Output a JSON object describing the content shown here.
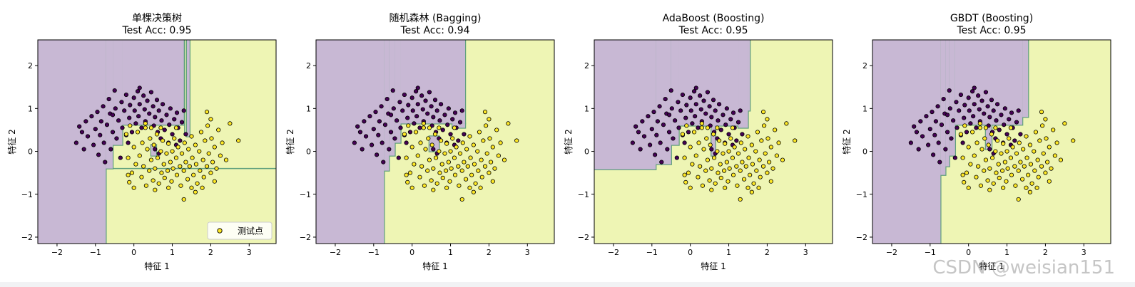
{
  "watermark": "CSDN @weisian151",
  "colors": {
    "region_class0": "#c8b8d4",
    "region_class1": "#eef5b4",
    "boundary": "#5f9f7c",
    "point_class0": "#440154",
    "point_class1": "#fde725",
    "point_edge": "#000000"
  },
  "chart_data": [
    {
      "type": "scatter",
      "title": "单棵决策树",
      "subtitle": "Test Acc: 0.95",
      "xlabel": "特征 1",
      "ylabel": "特征 2",
      "xlim": [
        -2.5,
        3.7
      ],
      "ylim": [
        -2.15,
        2.6
      ],
      "xticks": [
        -2,
        -1,
        0,
        1,
        2,
        3
      ],
      "yticks": [
        -2,
        -1,
        0,
        1,
        2
      ],
      "legend": {
        "label": "测试点",
        "position": "lower-right"
      },
      "decision_regions": {
        "background_class": 1,
        "class0_rects": [
          [
            -2.5,
            -0.73,
            -2.15,
            2.6
          ],
          [
            -0.73,
            -0.55,
            -0.4,
            2.6
          ],
          [
            -0.55,
            -0.3,
            0.15,
            2.6
          ],
          [
            -0.3,
            1.3,
            0.62,
            2.6
          ],
          [
            1.38,
            1.45,
            0.35,
            2.6
          ],
          [
            0.45,
            0.58,
            -0.1,
            0.15
          ]
        ]
      }
    },
    {
      "type": "scatter",
      "title": "随机森林 (Bagging)",
      "subtitle": "Test Acc: 0.94",
      "xlabel": "特征 1",
      "ylabel": "特征 2",
      "xlim": [
        -2.5,
        3.7
      ],
      "ylim": [
        -2.15,
        2.6
      ],
      "xticks": [
        -2,
        -1,
        0,
        1,
        2,
        3
      ],
      "yticks": [
        -2,
        -1,
        0,
        1,
        2
      ],
      "decision_regions": {
        "background_class": 1,
        "class0_rects": [
          [
            -2.5,
            -0.73,
            -2.15,
            2.6
          ],
          [
            -0.73,
            -0.6,
            -0.45,
            2.6
          ],
          [
            -0.6,
            -0.45,
            -0.1,
            2.6
          ],
          [
            -0.45,
            -0.3,
            0.2,
            2.6
          ],
          [
            -0.3,
            1.38,
            0.65,
            2.6
          ],
          [
            0.45,
            0.7,
            0.0,
            0.35
          ],
          [
            1.05,
            1.38,
            0.55,
            0.65
          ]
        ]
      }
    },
    {
      "type": "scatter",
      "title": "AdaBoost (Boosting)",
      "subtitle": "Test Acc: 0.95",
      "xlabel": "特征 1",
      "ylabel": "特征 2",
      "xlim": [
        -2.5,
        3.7
      ],
      "ylim": [
        -2.15,
        2.6
      ],
      "xticks": [
        -2,
        -1,
        0,
        1,
        2,
        3
      ],
      "yticks": [
        -2,
        -1,
        0,
        1,
        2
      ],
      "decision_regions": {
        "background_class": 1,
        "class0_rects": [
          [
            -2.5,
            -0.9,
            -0.42,
            2.6
          ],
          [
            -0.9,
            -0.5,
            -0.3,
            2.6
          ],
          [
            -0.5,
            -0.3,
            0.15,
            2.6
          ],
          [
            -0.3,
            1.25,
            0.6,
            2.6
          ],
          [
            1.25,
            1.5,
            0.55,
            2.6
          ],
          [
            1.5,
            1.55,
            0.95,
            2.6
          ],
          [
            0.55,
            0.65,
            -0.1,
            0.6
          ]
        ]
      }
    },
    {
      "type": "scatter",
      "title": "GBDT (Boosting)",
      "subtitle": "Test Acc: 0.95",
      "xlabel": "特征 1",
      "ylabel": "特征 2",
      "xlim": [
        -2.5,
        3.7
      ],
      "ylim": [
        -2.15,
        2.6
      ],
      "xticks": [
        -2,
        -1,
        0,
        1,
        2,
        3
      ],
      "yticks": [
        -2,
        -1,
        0,
        1,
        2
      ],
      "decision_regions": {
        "background_class": 1,
        "class0_rects": [
          [
            -2.5,
            -0.73,
            -2.15,
            2.6
          ],
          [
            -0.73,
            -0.6,
            -0.55,
            2.6
          ],
          [
            -0.6,
            -0.5,
            -0.35,
            2.6
          ],
          [
            -0.5,
            -0.35,
            -0.1,
            2.6
          ],
          [
            -0.35,
            1.4,
            0.62,
            2.6
          ],
          [
            0.45,
            0.6,
            0.05,
            0.62
          ],
          [
            1.4,
            1.55,
            0.8,
            2.6
          ]
        ]
      }
    }
  ],
  "points": {
    "class0": [
      [
        -1.42,
        0.58
      ],
      [
        -1.35,
        0.45
      ],
      [
        -1.5,
        0.2
      ],
      [
        -1.25,
        0.7
      ],
      [
        -1.2,
        0.35
      ],
      [
        -1.1,
        0.82
      ],
      [
        -1.05,
        0.15
      ],
      [
        -1.0,
        0.52
      ],
      [
        -0.95,
        0.92
      ],
      [
        -0.92,
        -0.08
      ],
      [
        -0.88,
        0.38
      ],
      [
        -0.85,
        0.7
      ],
      [
        -0.8,
        1.05
      ],
      [
        -0.78,
        0.2
      ],
      [
        -0.75,
        -0.25
      ],
      [
        -0.7,
        0.62
      ],
      [
        -0.65,
        1.22
      ],
      [
        -0.62,
        0.88
      ],
      [
        -0.6,
        0.05
      ],
      [
        -0.55,
        0.45
      ],
      [
        -0.5,
        1.42
      ],
      [
        -0.48,
        1.0
      ],
      [
        -0.45,
        0.3
      ],
      [
        -0.4,
        0.72
      ],
      [
        -0.35,
        -0.15
      ],
      [
        -0.32,
        1.15
      ],
      [
        -0.3,
        0.55
      ],
      [
        -0.25,
        0.95
      ],
      [
        -0.2,
        1.32
      ],
      [
        -0.15,
        0.2
      ],
      [
        -0.12,
        0.78
      ],
      [
        -0.1,
        1.08
      ],
      [
        -0.05,
        0.45
      ],
      [
        0.0,
        1.25
      ],
      [
        0.02,
        0.95
      ],
      [
        0.05,
        0.65
      ],
      [
        0.1,
        1.4
      ],
      [
        0.12,
        0.82
      ],
      [
        0.15,
        1.1
      ],
      [
        0.2,
        0.55
      ],
      [
        0.25,
        1.3
      ],
      [
        0.28,
        0.98
      ],
      [
        0.3,
        0.7
      ],
      [
        0.35,
        1.18
      ],
      [
        0.4,
        0.88
      ],
      [
        0.45,
        1.38
      ],
      [
        0.5,
        1.05
      ],
      [
        0.52,
        0.6
      ],
      [
        0.55,
        0.8
      ],
      [
        0.6,
        1.2
      ],
      [
        0.62,
        0.45
      ],
      [
        0.65,
        0.95
      ],
      [
        0.7,
        0.3
      ],
      [
        0.72,
        0.72
      ],
      [
        0.75,
        1.1
      ],
      [
        0.8,
        0.5
      ],
      [
        0.85,
        0.85
      ],
      [
        0.9,
        0.2
      ],
      [
        0.92,
        0.62
      ],
      [
        0.95,
        1.0
      ],
      [
        1.0,
        0.4
      ],
      [
        1.05,
        0.75
      ],
      [
        1.1,
        0.15
      ],
      [
        1.12,
        0.9
      ],
      [
        1.15,
        0.55
      ],
      [
        1.2,
        0.25
      ],
      [
        1.25,
        0.68
      ],
      [
        1.3,
        0.95
      ],
      [
        1.35,
        0.4
      ],
      [
        0.55,
        0.05
      ],
      [
        0.65,
        -0.05
      ],
      [
        -0.55,
        0.85
      ],
      [
        -1.3,
        0.05
      ],
      [
        -0.2,
        0.38
      ],
      [
        0.15,
        1.48
      ]
    ],
    "class1": [
      [
        -0.2,
        0.4
      ],
      [
        -0.15,
        -0.15
      ],
      [
        -0.1,
        0.6
      ],
      [
        -0.05,
        -0.5
      ],
      [
        0.0,
        0.1
      ],
      [
        -0.12,
        -0.72
      ],
      [
        0.05,
        -0.3
      ],
      [
        0.1,
        0.45
      ],
      [
        0.15,
        -0.1
      ],
      [
        0.2,
        -0.6
      ],
      [
        0.22,
        0.2
      ],
      [
        0.25,
        -0.35
      ],
      [
        0.3,
        0.55
      ],
      [
        0.32,
        -0.8
      ],
      [
        0.35,
        0.05
      ],
      [
        0.4,
        -0.45
      ],
      [
        0.42,
        0.3
      ],
      [
        0.45,
        -0.2
      ],
      [
        0.5,
        -0.68
      ],
      [
        0.52,
        0.15
      ],
      [
        0.55,
        -0.4
      ],
      [
        0.6,
        0.4
      ],
      [
        0.62,
        -0.15
      ],
      [
        0.65,
        -0.75
      ],
      [
        0.7,
        0.0
      ],
      [
        0.72,
        -0.5
      ],
      [
        0.75,
        0.25
      ],
      [
        0.78,
        -0.3
      ],
      [
        0.8,
        -0.62
      ],
      [
        0.85,
        -0.05
      ],
      [
        0.88,
        -0.45
      ],
      [
        0.9,
        0.18
      ],
      [
        0.95,
        -0.25
      ],
      [
        0.98,
        -0.7
      ],
      [
        1.0,
        0.0
      ],
      [
        1.02,
        -0.4
      ],
      [
        1.05,
        0.3
      ],
      [
        1.1,
        -0.15
      ],
      [
        1.12,
        -0.55
      ],
      [
        1.15,
        0.1
      ],
      [
        1.2,
        -0.35
      ],
      [
        1.22,
        -0.8
      ],
      [
        1.25,
        -0.05
      ],
      [
        1.3,
        -0.45
      ],
      [
        1.32,
        0.2
      ],
      [
        1.35,
        -0.25
      ],
      [
        1.4,
        -0.65
      ],
      [
        1.42,
        0.05
      ],
      [
        1.45,
        -0.35
      ],
      [
        1.5,
        0.35
      ],
      [
        1.52,
        -0.15
      ],
      [
        1.55,
        -0.55
      ],
      [
        1.6,
        0.15
      ],
      [
        1.62,
        -0.3
      ],
      [
        1.65,
        -0.75
      ],
      [
        1.7,
        0.0
      ],
      [
        1.72,
        -0.45
      ],
      [
        1.75,
        0.45
      ],
      [
        1.8,
        -0.2
      ],
      [
        1.82,
        -0.6
      ],
      [
        1.85,
        0.25
      ],
      [
        1.9,
        -0.35
      ],
      [
        1.92,
        0.6
      ],
      [
        1.95,
        -0.05
      ],
      [
        2.0,
        -0.5
      ],
      [
        2.02,
        0.3
      ],
      [
        2.05,
        -0.25
      ],
      [
        2.1,
        0.1
      ],
      [
        2.15,
        -0.4
      ],
      [
        2.2,
        0.5
      ],
      [
        2.25,
        -0.1
      ],
      [
        2.3,
        0.2
      ],
      [
        1.9,
        0.92
      ],
      [
        2.0,
        0.75
      ],
      [
        2.5,
        0.65
      ],
      [
        2.72,
        0.25
      ],
      [
        1.3,
        -1.12
      ],
      [
        1.6,
        -0.95
      ],
      [
        1.5,
        -0.85
      ],
      [
        0.9,
        -0.85
      ],
      [
        0.0,
        -0.85
      ],
      [
        -0.15,
        -0.55
      ],
      [
        0.3,
        0.65
      ],
      [
        0.45,
        0.55
      ],
      [
        0.7,
        0.55
      ],
      [
        1.1,
        0.55
      ],
      [
        2.4,
        -0.2
      ],
      [
        2.1,
        -0.7
      ],
      [
        0.55,
        -0.9
      ],
      [
        1.78,
        -0.85
      ]
    ]
  }
}
